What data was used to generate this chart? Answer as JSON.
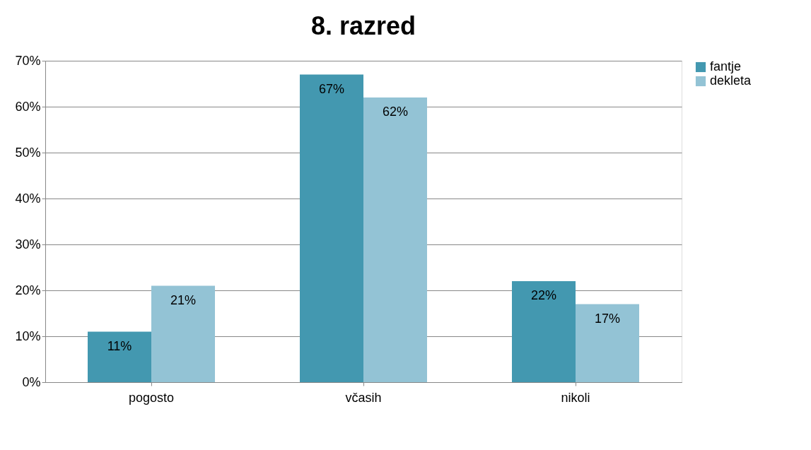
{
  "chart_data": {
    "type": "bar",
    "title": "8. razred",
    "categories": [
      "pogosto",
      "včasih",
      "nikoli"
    ],
    "series": [
      {
        "name": "fantje",
        "color": "#4398b0",
        "values": [
          11,
          67,
          22
        ],
        "value_labels": [
          "11%",
          "67%",
          "22%"
        ]
      },
      {
        "name": "dekleta",
        "color": "#93c3d5",
        "values": [
          21,
          62,
          17
        ],
        "value_labels": [
          "21%",
          "62%",
          "17%"
        ]
      }
    ],
    "ylim": [
      0,
      70
    ],
    "yticks": [
      {
        "value": 0,
        "label": "0%"
      },
      {
        "value": 10,
        "label": "10%"
      },
      {
        "value": 20,
        "label": "20%"
      },
      {
        "value": 30,
        "label": "30%"
      },
      {
        "value": 40,
        "label": "40%"
      },
      {
        "value": 50,
        "label": "50%"
      },
      {
        "value": 60,
        "label": "60%"
      },
      {
        "value": 70,
        "label": "70%"
      }
    ],
    "grid": "y",
    "legend": "right"
  }
}
